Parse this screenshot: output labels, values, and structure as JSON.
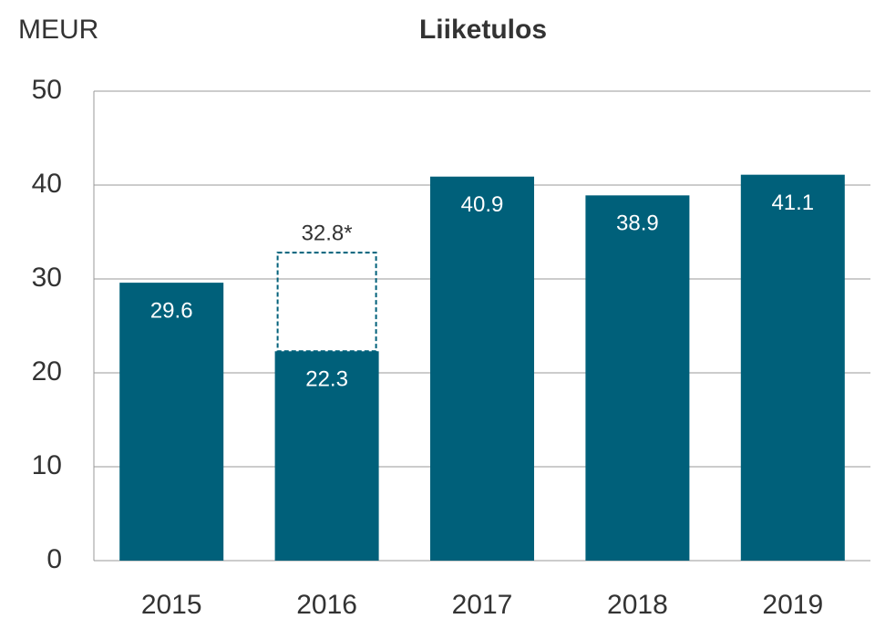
{
  "chart_data": {
    "type": "bar",
    "title": "Liiketulos",
    "y_label": "MEUR",
    "categories": [
      "2015",
      "2016",
      "2017",
      "2018",
      "2019"
    ],
    "values": [
      29.6,
      22.3,
      40.9,
      38.9,
      41.1
    ],
    "color": "#00607a",
    "adjusted": {
      "values": [
        null,
        32.8,
        null,
        null,
        null
      ],
      "value_labels": [
        null,
        "32.8*",
        null,
        null,
        null
      ],
      "color": "#00607a"
    },
    "ylim": [
      0,
      50
    ],
    "yticks": [
      0,
      10,
      20,
      30,
      40,
      50
    ],
    "grid": true
  }
}
